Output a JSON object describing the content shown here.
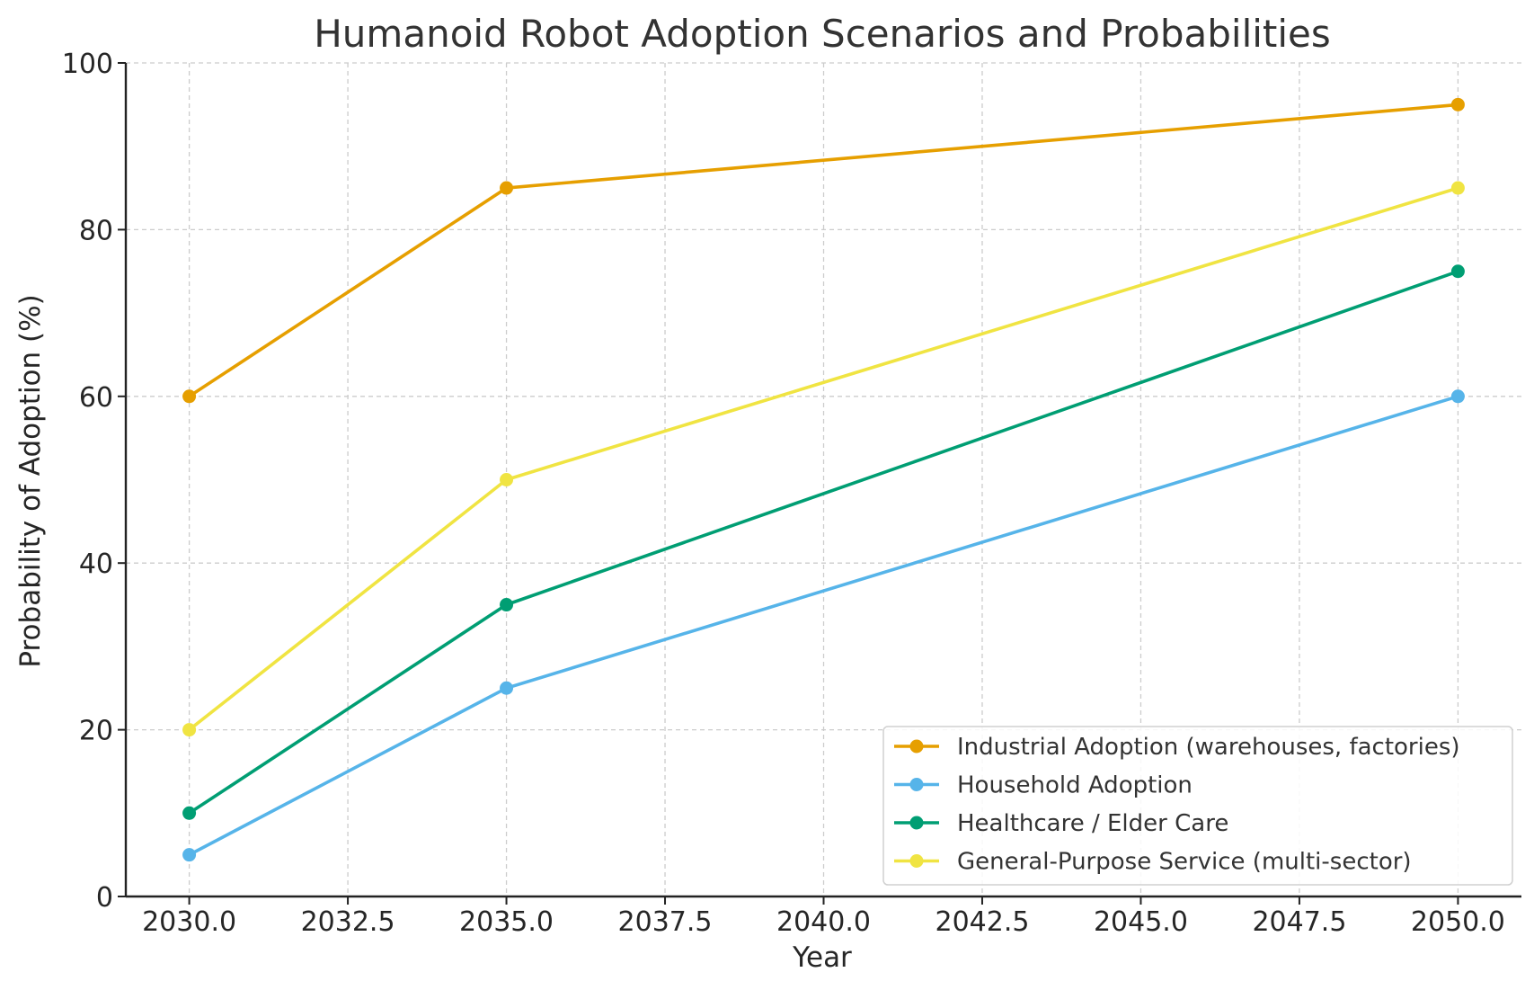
{
  "chart_data": {
    "type": "line",
    "title": "Humanoid Robot Adoption Scenarios and Probabilities",
    "xlabel": "Year",
    "ylabel": "Probability of Adoption (%)",
    "xlim": [
      2029.0,
      2051.0
    ],
    "ylim": [
      0,
      100
    ],
    "x": [
      2030,
      2035,
      2050
    ],
    "xticks": [
      2030.0,
      2032.5,
      2035.0,
      2037.5,
      2040.0,
      2042.5,
      2045.0,
      2047.5,
      2050.0
    ],
    "xtick_labels": [
      "2030.0",
      "2032.5",
      "2035.0",
      "2037.5",
      "2040.0",
      "2042.5",
      "2045.0",
      "2047.5",
      "2050.0"
    ],
    "yticks": [
      0,
      20,
      40,
      60,
      80,
      100
    ],
    "ytick_labels": [
      "0",
      "20",
      "40",
      "60",
      "80",
      "100"
    ],
    "grid": true,
    "legend_position": "bottom-right",
    "series": [
      {
        "name": "Industrial Adoption (warehouses, factories)",
        "values": [
          60,
          85,
          95
        ],
        "color": "#E69F00"
      },
      {
        "name": "Household Adoption",
        "values": [
          5,
          25,
          60
        ],
        "color": "#56B4E9"
      },
      {
        "name": "Healthcare / Elder Care",
        "values": [
          10,
          35,
          75
        ],
        "color": "#009E73"
      },
      {
        "name": "General-Purpose Service (multi-sector)",
        "values": [
          20,
          50,
          85
        ],
        "color": "#F0E442"
      }
    ]
  }
}
